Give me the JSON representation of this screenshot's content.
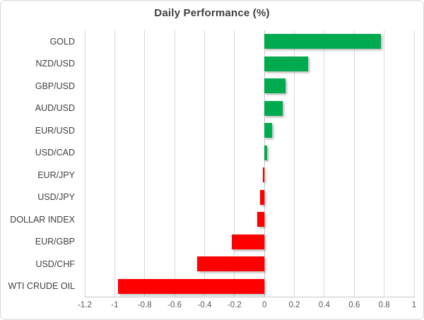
{
  "chart_data": {
    "type": "bar",
    "orientation": "horizontal",
    "title": "Daily Performance (%)",
    "categories": [
      "GOLD",
      "NZD/USD",
      "GBP/USD",
      "AUD/USD",
      "EUR/USD",
      "USD/CAD",
      "EUR/JPY",
      "USD/JPY",
      "DOLLAR INDEX",
      "EUR/GBP",
      "USD/CHF",
      "WTI CRUDE OIL"
    ],
    "values": [
      0.78,
      0.29,
      0.14,
      0.12,
      0.05,
      0.02,
      -0.01,
      -0.03,
      -0.05,
      -0.22,
      -0.45,
      -0.98
    ],
    "xlabel": "",
    "ylabel": "",
    "xlim": [
      -1.2,
      1.0
    ],
    "x_tick_values": [
      -1.2,
      -1,
      -0.8,
      -0.6,
      -0.4,
      -0.2,
      0,
      0.2,
      0.4,
      0.6,
      0.8,
      1
    ],
    "x_tick_labels": [
      "-1.2",
      "-1",
      "-0.8",
      "-0.6",
      "-0.4",
      "-0.2",
      "0",
      "0.2",
      "0.4",
      "0.6",
      "0.8",
      "1"
    ],
    "grid": true,
    "legend": false,
    "positive_color": "#00ab50",
    "negative_color": "#fe0000",
    "gridline_color": "#d9d9d9",
    "title_color": "#3f3f3f",
    "label_color": "#404040",
    "tick_color": "#595959"
  }
}
